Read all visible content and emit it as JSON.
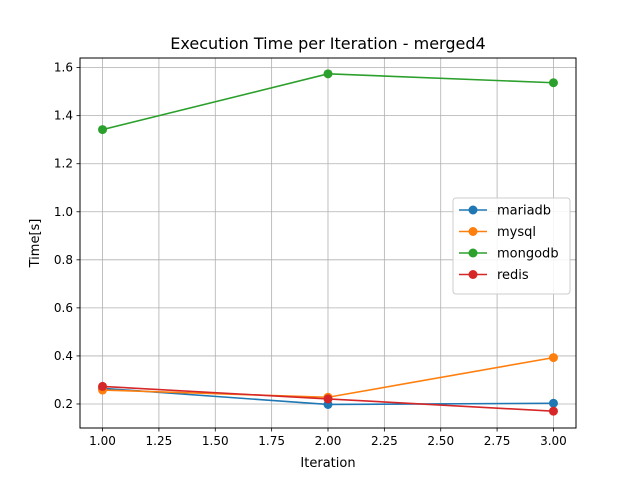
{
  "chart_data": {
    "type": "line",
    "title": "Execution Time per Iteration - merged4",
    "xlabel": "Iteration",
    "ylabel": "Time[s]",
    "xlim": [
      0.9,
      3.1
    ],
    "ylim": [
      0.1,
      1.64
    ],
    "x_ticks": [
      1.0,
      1.25,
      1.5,
      1.75,
      2.0,
      2.25,
      2.5,
      2.75,
      3.0
    ],
    "x_tick_labels": [
      "1.00",
      "1.25",
      "1.50",
      "1.75",
      "2.00",
      "2.25",
      "2.50",
      "2.75",
      "3.00"
    ],
    "y_ticks": [
      0.2,
      0.4,
      0.6,
      0.8,
      1.0,
      1.2,
      1.4,
      1.6
    ],
    "y_tick_labels": [
      "0.2",
      "0.4",
      "0.6",
      "0.8",
      "1.0",
      "1.2",
      "1.4",
      "1.6"
    ],
    "grid": true,
    "legend_position": "center-right",
    "x": [
      1,
      2,
      3
    ],
    "series": [
      {
        "name": "mariadb",
        "color": "#1f77b4",
        "values": [
          0.265,
          0.198,
          0.203
        ]
      },
      {
        "name": "mysql",
        "color": "#ff7f0e",
        "values": [
          0.258,
          0.228,
          0.393
        ]
      },
      {
        "name": "mongodb",
        "color": "#2ca02c",
        "values": [
          1.342,
          1.574,
          1.537
        ]
      },
      {
        "name": "redis",
        "color": "#d62728",
        "values": [
          0.273,
          0.221,
          0.17
        ]
      }
    ]
  }
}
